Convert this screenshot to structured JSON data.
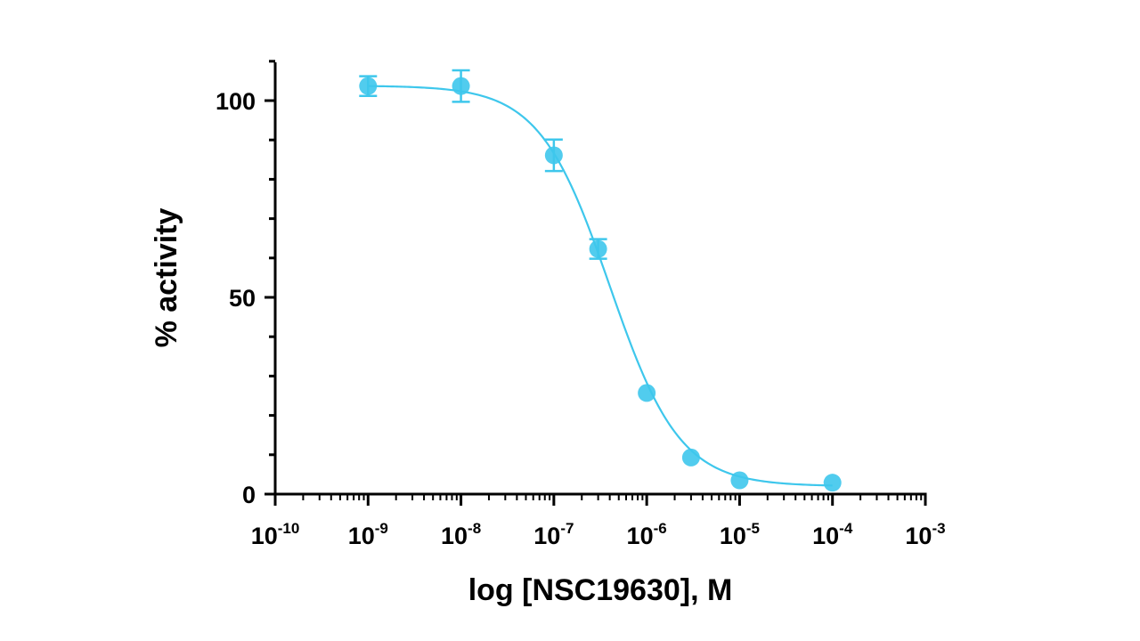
{
  "chart_data": {
    "type": "scatter",
    "title": "",
    "xlabel": "log [NSC19630], M",
    "ylabel": "% activity",
    "x_scale": "log",
    "xlim": [
      1e-10,
      0.001
    ],
    "ylim": [
      0,
      100
    ],
    "grid": false,
    "legend": "none",
    "x_ticks": [
      {
        "base": "10",
        "exp": "-10",
        "value": 1e-10
      },
      {
        "base": "10",
        "exp": "-9",
        "value": 1e-09
      },
      {
        "base": "10",
        "exp": "-8",
        "value": 1e-08
      },
      {
        "base": "10",
        "exp": "-7",
        "value": 1e-07
      },
      {
        "base": "10",
        "exp": "-6",
        "value": 1e-06
      },
      {
        "base": "10",
        "exp": "-5",
        "value": 1e-05
      },
      {
        "base": "10",
        "exp": "-4",
        "value": 0.0001
      },
      {
        "base": "10",
        "exp": "-3",
        "value": 0.001
      }
    ],
    "y_ticks": [
      {
        "label": "0",
        "value": 0
      },
      {
        "label": "50",
        "value": 50
      },
      {
        "label": "100",
        "value": 100
      }
    ],
    "series": [
      {
        "color": "#3EC7EC",
        "points": [
          {
            "x": 1e-09,
            "y": 103.7,
            "err": 2.5
          },
          {
            "x": 1e-08,
            "y": 103.7,
            "err": 4.0
          },
          {
            "x": 1e-07,
            "y": 86.1,
            "err": 4.0
          },
          {
            "x": 3e-07,
            "y": 62.3,
            "err": 2.5
          },
          {
            "x": 1e-06,
            "y": 25.7,
            "err": 0
          },
          {
            "x": 3e-06,
            "y": 9.3,
            "err": 0
          },
          {
            "x": 1e-05,
            "y": 3.5,
            "err": 0
          },
          {
            "x": 0.0001,
            "y": 2.9,
            "err": 0
          }
        ],
        "fit": {
          "model": "four-parameter logistic",
          "top": 103.8,
          "bottom": 2.0,
          "ic50": 4e-07,
          "hill": 1.15,
          "x_range": [
            1e-09,
            0.0001
          ]
        }
      }
    ]
  }
}
